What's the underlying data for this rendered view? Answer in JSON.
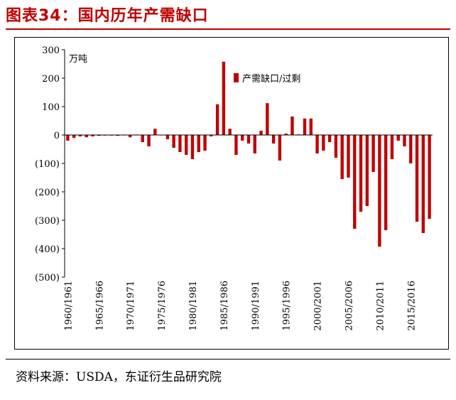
{
  "header": {
    "title": "图表34：国内历年产需缺口"
  },
  "footer": {
    "source": "资料来源：USDA，东证衍生品研究院"
  },
  "chart_data": {
    "type": "bar",
    "ylabel": "万吨",
    "ylim": [
      -500,
      300
    ],
    "yticks": [
      300,
      200,
      100,
      0,
      -100,
      -200,
      -300,
      -400,
      -500
    ],
    "ytick_labels": [
      "300",
      "200",
      "100",
      "0",
      "(100)",
      "(200)",
      "(300)",
      "(400)",
      "(500)"
    ],
    "xtick_labels": [
      "1960/1961",
      "1965/1966",
      "1970/1971",
      "1975/1976",
      "1980/1981",
      "1985/1986",
      "1990/1991",
      "1995/1996",
      "2000/2001",
      "2005/2006",
      "2010/2011",
      "2015/2016"
    ],
    "legend": {
      "position": "top-center",
      "entries": [
        "产需缺口/过剩"
      ]
    },
    "bar_color": "#c00000",
    "series": [
      {
        "name": "产需缺口/过剩",
        "categories": [
          "1960/1961",
          "1961/1962",
          "1962/1963",
          "1963/1964",
          "1964/1965",
          "1965/1966",
          "1966/1967",
          "1967/1968",
          "1968/1969",
          "1969/1970",
          "1970/1971",
          "1971/1972",
          "1972/1973",
          "1973/1974",
          "1974/1975",
          "1975/1976",
          "1976/1977",
          "1977/1978",
          "1978/1979",
          "1979/1980",
          "1980/1981",
          "1981/1982",
          "1982/1983",
          "1983/1984",
          "1984/1985",
          "1985/1986",
          "1986/1987",
          "1987/1988",
          "1988/1989",
          "1989/1990",
          "1990/1991",
          "1991/1992",
          "1992/1993",
          "1993/1994",
          "1994/1995",
          "1995/1996",
          "1996/1997",
          "1997/1998",
          "1998/1999",
          "1999/2000",
          "2000/2001",
          "2001/2002",
          "2002/2003",
          "2003/2004",
          "2004/2005",
          "2005/2006",
          "2006/2007",
          "2007/2008",
          "2008/2009",
          "2009/2010",
          "2010/2011",
          "2011/2012",
          "2012/2013",
          "2013/2014",
          "2014/2015",
          "2015/2016",
          "2016/2017",
          "2017/2018",
          "2018/2019"
        ],
        "values": [
          -20,
          -10,
          -5,
          -8,
          -5,
          -3,
          -2,
          -2,
          -3,
          0,
          -8,
          0,
          -25,
          -40,
          22,
          0,
          -15,
          -45,
          -60,
          -70,
          -85,
          -60,
          -55,
          -5,
          108,
          258,
          22,
          -70,
          -20,
          -30,
          -65,
          15,
          112,
          -30,
          -90,
          5,
          65,
          2,
          58,
          58,
          -65,
          -55,
          -25,
          -80,
          -155,
          -150,
          -330,
          -270,
          -250,
          -130,
          -393,
          -335,
          -85,
          -20,
          -40,
          -100,
          -305,
          -345,
          -295
        ]
      }
    ]
  }
}
